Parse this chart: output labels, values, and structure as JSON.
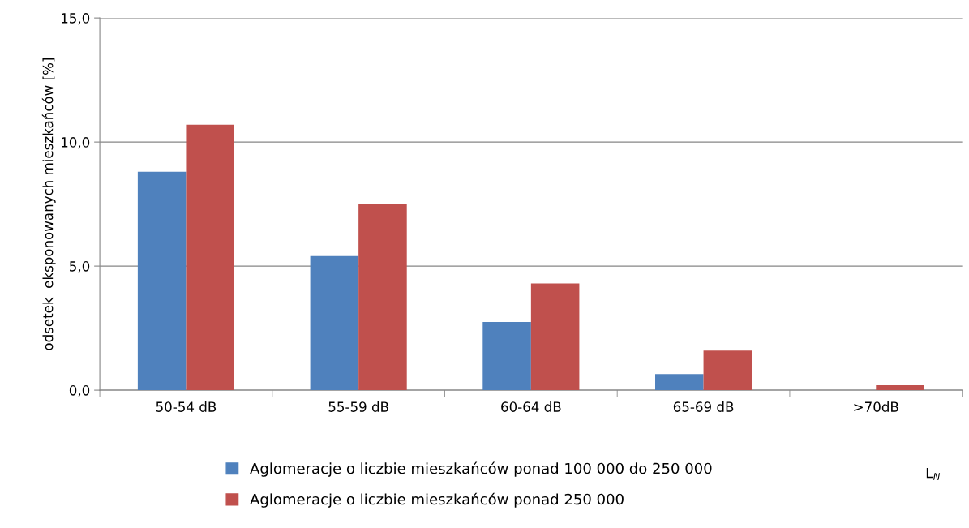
{
  "chart_data": {
    "type": "bar",
    "categories": [
      "50-54 dB",
      "55-59 dB",
      "60-64 dB",
      "65-69 dB",
      ">70dB"
    ],
    "series": [
      {
        "name": "Aglomeracje o liczbie mieszkańców ponad 100 000 do 250 000",
        "color": "#4f81bd",
        "values": [
          8.8,
          5.4,
          2.75,
          0.65,
          0
        ]
      },
      {
        "name": "Aglomeracje o liczbie mieszkańców ponad 250 000",
        "color": "#c0504d",
        "values": [
          10.7,
          7.5,
          4.3,
          1.6,
          0.2
        ]
      }
    ],
    "ylabel": "odsetek  eksponowanych mieszkańców [%]",
    "xlabel": "L$_{N}$",
    "ylim": [
      0,
      15
    ],
    "yticks": [
      {
        "value": 0,
        "label": "0,0"
      },
      {
        "value": 5,
        "label": "5,0"
      },
      {
        "value": 10,
        "label": "10,0"
      },
      {
        "value": 15,
        "label": "15,0"
      }
    ],
    "grid": "y",
    "legend": "bottom"
  }
}
